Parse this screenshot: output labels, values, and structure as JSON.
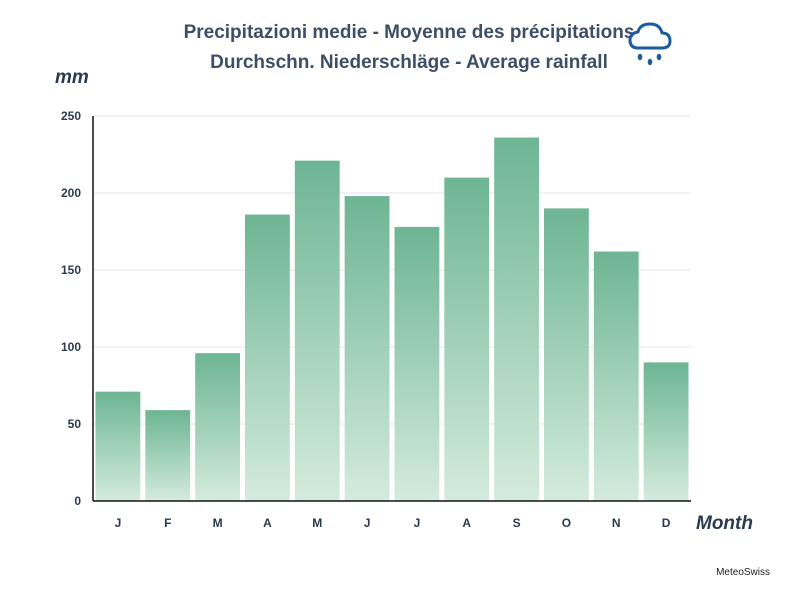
{
  "chart_data": {
    "type": "bar",
    "title_lines": [
      "Precipitazioni medie - Moyenne des précipitations",
      "Durchschn. Niederschläge - Average rainfall"
    ],
    "ylabel": "mm",
    "xlabel": "Month",
    "categories": [
      "J",
      "F",
      "M",
      "A",
      "M",
      "J",
      "J",
      "A",
      "S",
      "O",
      "N",
      "D"
    ],
    "values": [
      71,
      59,
      96,
      186,
      221,
      198,
      178,
      210,
      236,
      190,
      162,
      90
    ],
    "ylim": [
      0,
      250
    ],
    "yticks": [
      0,
      50,
      100,
      150,
      200,
      250
    ],
    "grid": true,
    "legend": "none",
    "colors": {
      "bar_top": "#6db593",
      "bar_bottom": "#d4ebde",
      "icon": "#1a5c9e"
    },
    "icon": "rain-cloud-icon"
  },
  "footer": {
    "source": "MeteoSwiss"
  }
}
